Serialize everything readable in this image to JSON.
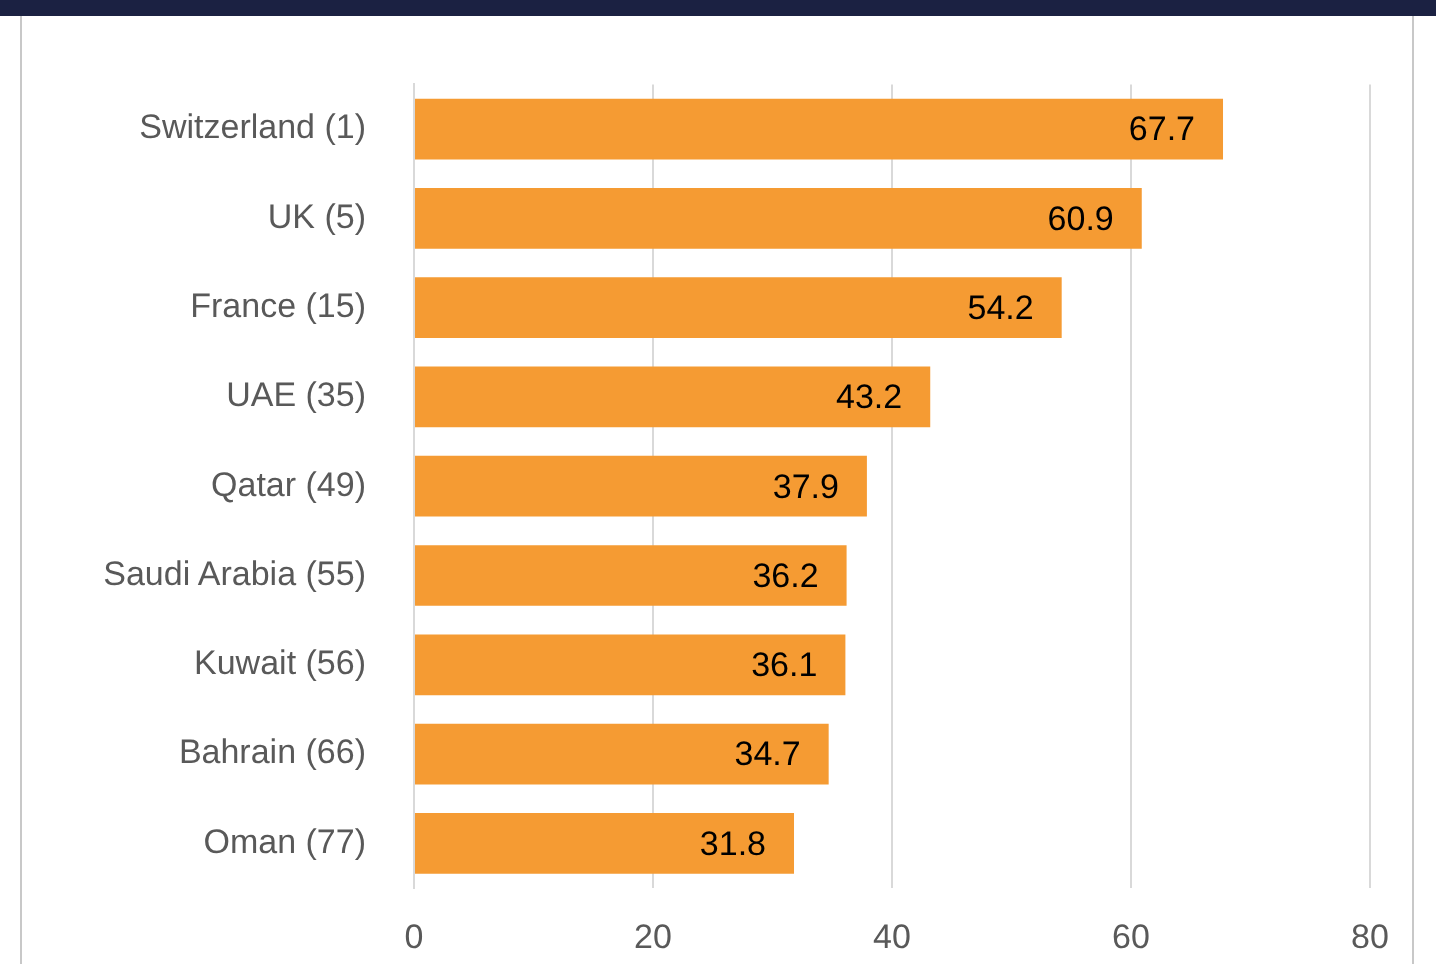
{
  "chart_data": {
    "type": "bar",
    "orientation": "horizontal",
    "categories": [
      "Switzerland (1)",
      "UK (5)",
      "France (15)",
      "UAE (35)",
      "Qatar (49)",
      "Saudi Arabia (55)",
      "Kuwait (56)",
      "Bahrain (66)",
      "Oman (77)"
    ],
    "values": [
      67.7,
      60.9,
      54.2,
      43.2,
      37.9,
      36.2,
      36.1,
      34.7,
      31.8
    ],
    "color": "#f59b33",
    "xlim": [
      0,
      80
    ],
    "xticks": [
      0,
      20,
      40,
      60,
      80
    ],
    "grid": "x",
    "data_labels": true,
    "legend": false
  }
}
